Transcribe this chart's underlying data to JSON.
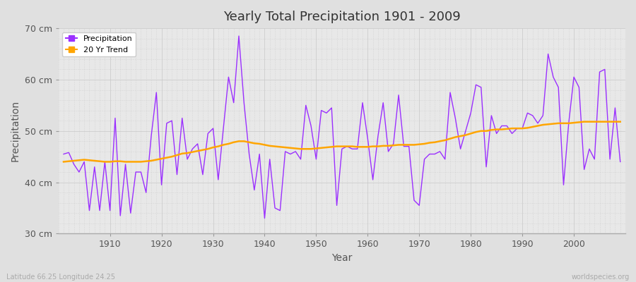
{
  "title": "Yearly Total Precipitation 1901 - 2009",
  "xlabel": "Year",
  "ylabel": "Precipitation",
  "footnote_left": "Latitude 66.25 Longitude 24.25",
  "footnote_right": "worldspecies.org",
  "line_color": "#9B30FF",
  "trend_color": "#FFA500",
  "fig_bg_color": "#E0E0E0",
  "plot_bg_color": "#E8E8E8",
  "ylim": [
    30,
    70
  ],
  "yticks": [
    30,
    40,
    50,
    60,
    70
  ],
  "ytick_labels": [
    "30 cm",
    "40 cm",
    "50 cm",
    "60 cm",
    "70 cm"
  ],
  "xlim": [
    1900,
    2010
  ],
  "xticks": [
    1910,
    1920,
    1930,
    1940,
    1950,
    1960,
    1970,
    1980,
    1990,
    2000
  ],
  "years": [
    1901,
    1902,
    1903,
    1904,
    1905,
    1906,
    1907,
    1908,
    1909,
    1910,
    1911,
    1912,
    1913,
    1914,
    1915,
    1916,
    1917,
    1918,
    1919,
    1920,
    1921,
    1922,
    1923,
    1924,
    1925,
    1926,
    1927,
    1928,
    1929,
    1930,
    1931,
    1932,
    1933,
    1934,
    1935,
    1936,
    1937,
    1938,
    1939,
    1940,
    1941,
    1942,
    1943,
    1944,
    1945,
    1946,
    1947,
    1948,
    1949,
    1950,
    1951,
    1952,
    1953,
    1954,
    1955,
    1956,
    1957,
    1958,
    1959,
    1960,
    1961,
    1962,
    1963,
    1964,
    1965,
    1966,
    1967,
    1968,
    1969,
    1970,
    1971,
    1972,
    1973,
    1974,
    1975,
    1976,
    1977,
    1978,
    1979,
    1980,
    1981,
    1982,
    1983,
    1984,
    1985,
    1986,
    1987,
    1988,
    1989,
    1990,
    1991,
    1992,
    1993,
    1994,
    1995,
    1996,
    1997,
    1998,
    1999,
    2000,
    2001,
    2002,
    2003,
    2004,
    2005,
    2006,
    2007,
    2008,
    2009
  ],
  "precip": [
    45.5,
    45.8,
    43.5,
    42.0,
    44.0,
    34.5,
    43.0,
    34.5,
    44.0,
    34.5,
    52.5,
    33.5,
    43.5,
    34.0,
    42.0,
    42.0,
    38.0,
    49.0,
    57.5,
    39.5,
    51.5,
    52.0,
    41.5,
    52.5,
    44.5,
    46.5,
    47.5,
    41.5,
    49.5,
    50.5,
    40.5,
    50.5,
    60.5,
    55.5,
    68.5,
    55.5,
    45.5,
    38.5,
    45.5,
    33.0,
    44.5,
    35.0,
    34.5,
    46.0,
    45.5,
    46.0,
    44.5,
    55.0,
    51.0,
    44.5,
    54.0,
    53.5,
    54.5,
    35.5,
    46.5,
    47.0,
    46.5,
    46.5,
    55.5,
    48.5,
    40.5,
    49.0,
    55.5,
    46.0,
    47.5,
    57.0,
    47.0,
    47.0,
    36.5,
    35.5,
    44.5,
    45.5,
    45.5,
    46.0,
    44.5,
    57.5,
    52.5,
    46.5,
    50.0,
    53.5,
    59.0,
    58.5,
    43.0,
    53.0,
    49.5,
    51.0,
    51.0,
    49.5,
    50.5,
    50.5,
    53.5,
    53.0,
    51.5,
    53.0,
    65.0,
    60.5,
    58.5,
    39.5,
    51.5,
    60.5,
    58.5,
    42.5,
    46.5,
    44.5,
    61.5,
    62.0,
    44.5,
    54.5,
    44.0
  ],
  "trend": [
    44.0,
    44.1,
    44.2,
    44.3,
    44.4,
    44.3,
    44.2,
    44.1,
    44.0,
    44.0,
    44.1,
    44.1,
    44.0,
    44.0,
    44.0,
    44.0,
    44.1,
    44.2,
    44.4,
    44.6,
    44.8,
    45.0,
    45.3,
    45.6,
    45.7,
    45.9,
    46.1,
    46.3,
    46.5,
    46.8,
    47.0,
    47.3,
    47.5,
    47.8,
    48.0,
    48.0,
    47.8,
    47.6,
    47.5,
    47.3,
    47.1,
    47.0,
    46.9,
    46.8,
    46.7,
    46.6,
    46.5,
    46.5,
    46.5,
    46.6,
    46.7,
    46.8,
    46.9,
    47.0,
    47.0,
    47.0,
    47.0,
    46.9,
    46.9,
    46.9,
    47.0,
    47.0,
    47.1,
    47.1,
    47.2,
    47.3,
    47.3,
    47.3,
    47.3,
    47.4,
    47.5,
    47.7,
    47.8,
    48.0,
    48.2,
    48.5,
    48.8,
    49.0,
    49.2,
    49.5,
    49.8,
    50.0,
    50.0,
    50.2,
    50.3,
    50.3,
    50.4,
    50.5,
    50.5,
    50.5,
    50.6,
    50.8,
    51.0,
    51.2,
    51.3,
    51.4,
    51.5,
    51.5,
    51.5,
    51.6,
    51.7,
    51.8,
    51.8,
    51.8,
    51.8,
    51.8,
    51.8,
    51.8,
    51.8
  ]
}
